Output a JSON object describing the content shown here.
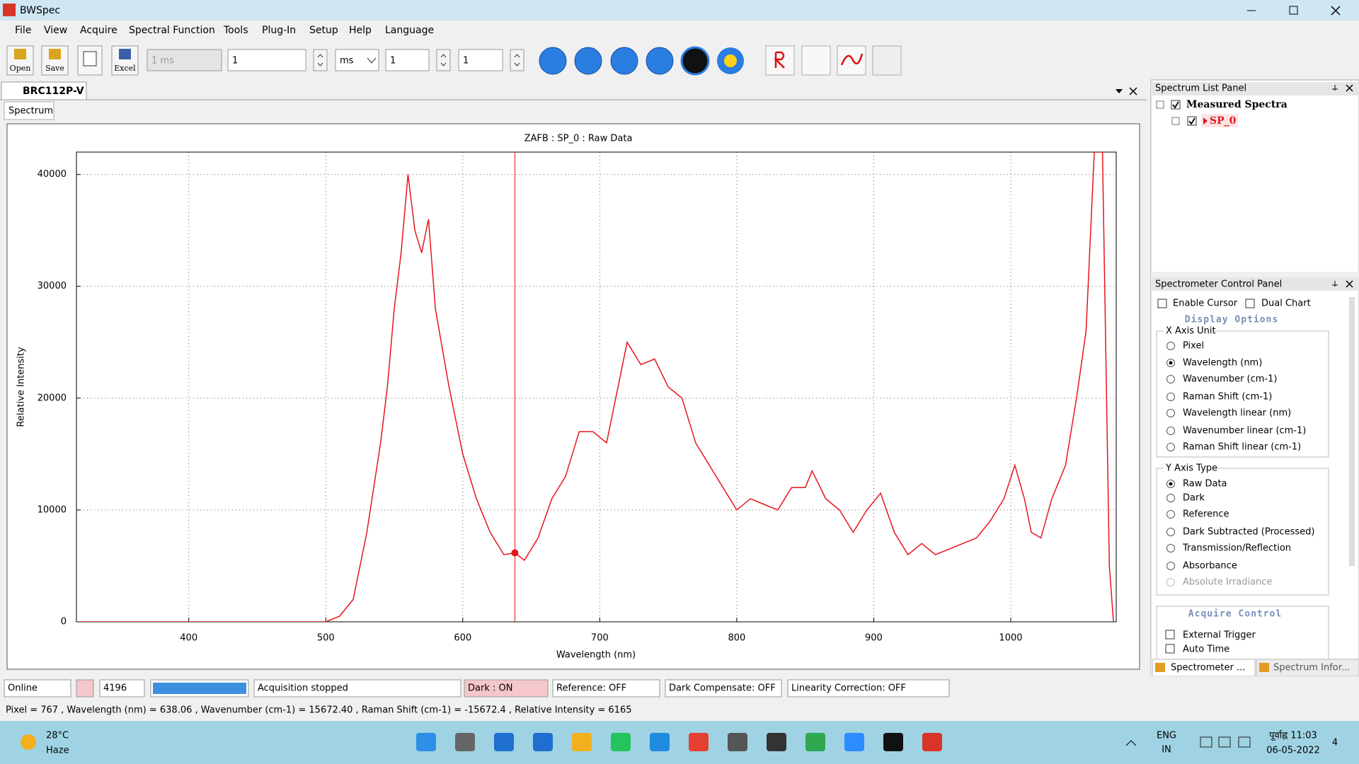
{
  "window": {
    "title": "BWSpec"
  },
  "menu": [
    "File",
    "View",
    "Acquire",
    "Spectral Function",
    "Tools",
    "Plug-In",
    "Setup",
    "Help",
    "Language"
  ],
  "toolbar": {
    "buttons": [
      "Open",
      "Save",
      "Excel"
    ],
    "exposure": "1 ms",
    "count": "1",
    "unit": "ms",
    "average": "1",
    "smooth": "1"
  },
  "document_tab": "BRC112P-V",
  "view_tab": "Spectrum",
  "chart_data": {
    "type": "line",
    "title": "ZAFB : SP_0 : Raw Data",
    "x_label": "Wavelength (nm)",
    "y_label": "Relative Intensity",
    "color": "#e8141b",
    "grid": true,
    "xlim": [
      318,
      1077
    ],
    "ylim": [
      0,
      42000
    ],
    "xticks": [
      400,
      500,
      600,
      700,
      800,
      900,
      1000
    ],
    "yticks": [
      0,
      10000,
      20000,
      30000,
      40000
    ],
    "x": [
      320,
      400,
      500,
      510,
      520,
      530,
      540,
      545,
      550,
      555,
      560,
      565,
      570,
      575,
      580,
      590,
      600,
      610,
      620,
      630,
      638,
      645,
      655,
      665,
      675,
      685,
      695,
      705,
      715,
      720,
      730,
      740,
      750,
      760,
      770,
      780,
      790,
      800,
      810,
      820,
      830,
      840,
      850,
      855,
      865,
      875,
      885,
      895,
      905,
      915,
      925,
      935,
      945,
      955,
      965,
      975,
      985,
      995,
      1003,
      1010,
      1015,
      1022,
      1030,
      1040,
      1048,
      1055,
      1061,
      1067,
      1072,
      1075
    ],
    "values": [
      0,
      0,
      0,
      500,
      2000,
      8000,
      16000,
      21000,
      28000,
      33000,
      40000,
      35000,
      33000,
      36000,
      28000,
      21000,
      15000,
      11000,
      8000,
      6000,
      6165,
      5500,
      7500,
      11000,
      13000,
      17000,
      17000,
      16000,
      22000,
      25000,
      23000,
      23500,
      21000,
      20000,
      16000,
      14000,
      12000,
      10000,
      11000,
      10500,
      10000,
      12000,
      12000,
      13500,
      11000,
      10000,
      8000,
      10000,
      11500,
      8000,
      6000,
      7000,
      6000,
      6500,
      7000,
      7500,
      9000,
      11000,
      14000,
      11000,
      8000,
      7500,
      11000,
      14000,
      20000,
      26000,
      42000,
      42000,
      5000,
      0
    ],
    "cursor": {
      "x": 638.06,
      "y": 6165
    }
  },
  "spectrum_list_panel": {
    "title": "Spectrum List Panel",
    "root": "Measured Spectra",
    "item": "SP_0"
  },
  "control_panel": {
    "title": "Spectrometer Control Panel",
    "enable_cursor": "Enable Cursor",
    "dual_chart": "Dual Chart",
    "display_options": "Display Options",
    "x_axis_unit": {
      "label": "X Axis Unit",
      "selected": 1,
      "options": [
        "Pixel",
        "Wavelength (nm)",
        "Wavenumber (cm-1)",
        "Raman Shift (cm-1)",
        "Wavelength linear (nm)",
        "Wavenumber linear (cm-1)",
        "Raman Shift linear (cm-1)"
      ]
    },
    "y_axis_type": {
      "label": "Y Axis Type",
      "selected": 0,
      "options": [
        "Raw Data",
        "Dark",
        "Reference",
        "Dark Subtracted (Processed)",
        "Transmission/Reflection",
        "Absorbance",
        "Absolute Irradiance"
      ]
    },
    "acquire_control": "Acquire Control",
    "external_trigger": "External Trigger",
    "auto_time": "Auto Time"
  },
  "panel_tabs": [
    "Spectrometer ...",
    "Spectrum Infor..."
  ],
  "status": {
    "state": "Online",
    "pixels": "4196",
    "acquisition": "Acquisition stopped",
    "dark": "Dark : ON",
    "reference": "Reference: OFF",
    "dark_compensate": "Dark Compensate: OFF",
    "linearity": "Linearity Correction: OFF"
  },
  "cursor_info": "Pixel = 767 , Wavelength (nm) = 638.06 , Wavenumber (cm-1) = 15672.40 , Raman Shift (cm-1) = -15672.4 , Relative Intensity = 6165",
  "taskbar": {
    "temperature": "28°C",
    "weather": "Haze",
    "language": "ENG",
    "region": "IN",
    "time": "पूर्वाह्न 11:03",
    "date": "06-05-2022",
    "notifications": "4"
  }
}
